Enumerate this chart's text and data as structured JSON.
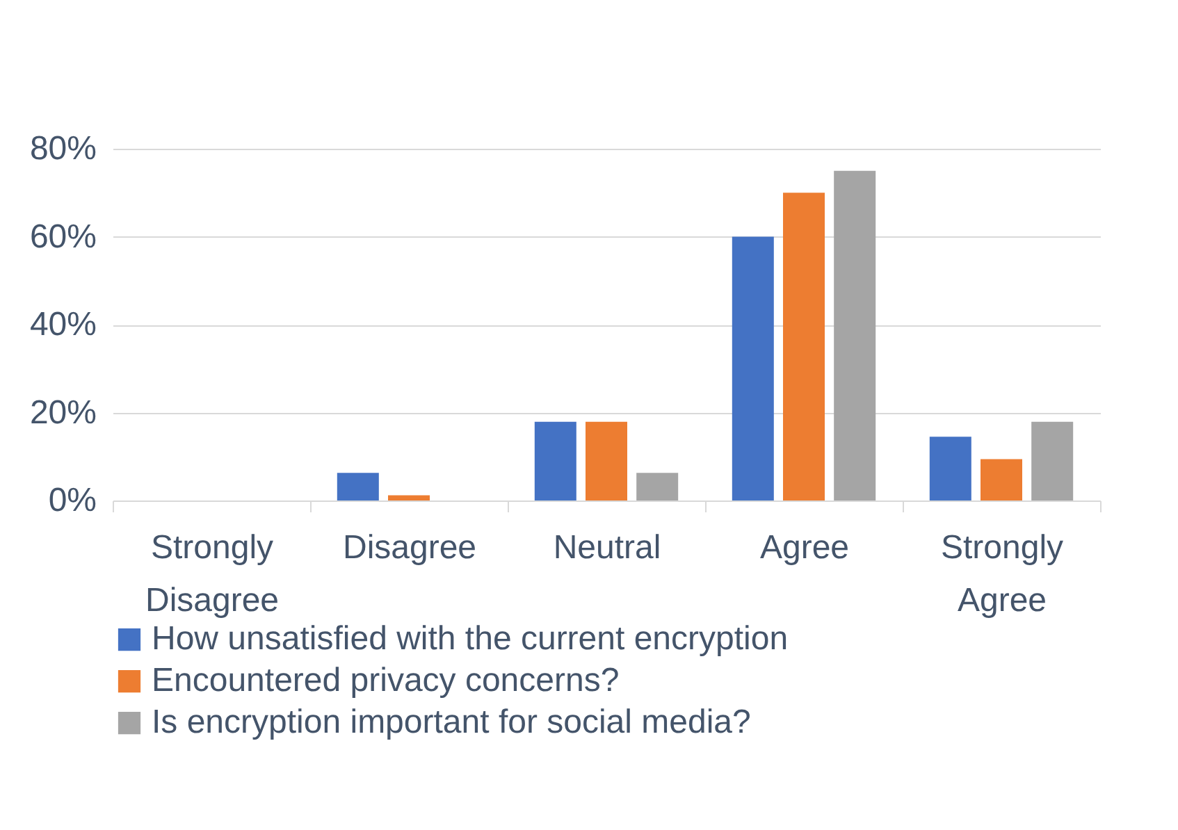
{
  "chart_data": {
    "type": "bar",
    "categories": [
      "Strongly Disagree",
      "Disagree",
      "Neutral",
      "Agree",
      "Strongly Agree"
    ],
    "series": [
      {
        "name": "How unsatisfied with the current encryption",
        "color": "#4472c4",
        "values": [
          0,
          6.3,
          17.9,
          60,
          14.5
        ]
      },
      {
        "name": "Encountered privacy concerns?",
        "color": "#ed7d31",
        "values": [
          0,
          1.2,
          17.9,
          70,
          9.4
        ]
      },
      {
        "name": "Is encryption important for social media?",
        "color": "#a5a5a5",
        "values": [
          0,
          0,
          6.3,
          75,
          17.9
        ]
      }
    ],
    "ylim": [
      0,
      80
    ],
    "yticks": [
      {
        "value": 0,
        "label": "0%"
      },
      {
        "value": 20,
        "label": "20%"
      },
      {
        "value": 40,
        "label": "40%"
      },
      {
        "value": 60,
        "label": "60%"
      },
      {
        "value": 80,
        "label": "80%"
      }
    ],
    "grid": "y",
    "legend": "bottom"
  }
}
